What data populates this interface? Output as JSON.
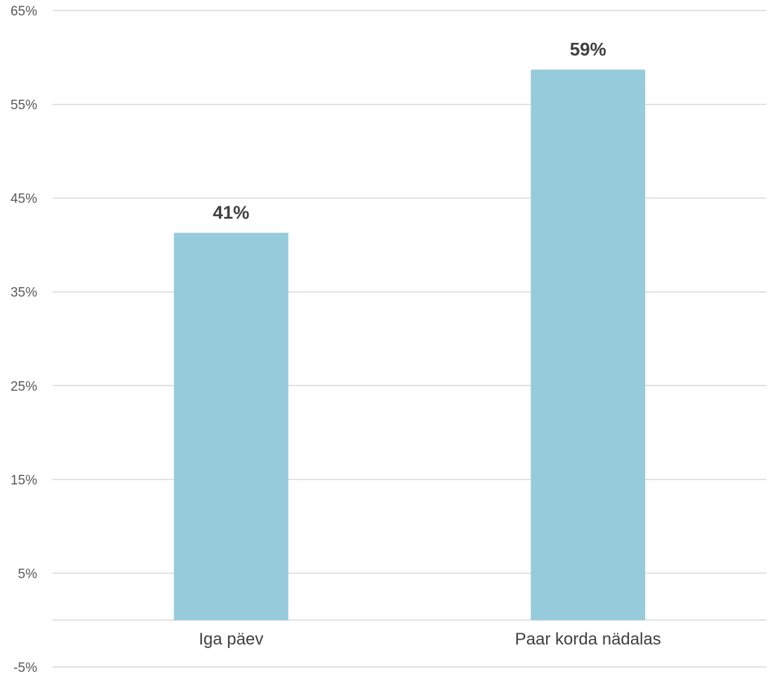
{
  "chart_data": {
    "type": "bar",
    "categories": [
      "Iga päev",
      "Paar korda nädalas"
    ],
    "values": [
      41.3,
      58.7
    ],
    "data_labels": [
      "41%",
      "59%"
    ],
    "title": "",
    "xlabel": "",
    "ylabel": "",
    "ylim": [
      -5,
      65
    ],
    "yticks": [
      -5,
      5,
      15,
      25,
      35,
      45,
      55,
      65
    ],
    "ytick_labels": [
      "-5%",
      "5%",
      "15%",
      "25%",
      "35%",
      "45%",
      "55%",
      "65%"
    ],
    "grid": true,
    "legend": "none",
    "bar_color": "#96CBDC",
    "grid_color": "#D9D9D9"
  }
}
